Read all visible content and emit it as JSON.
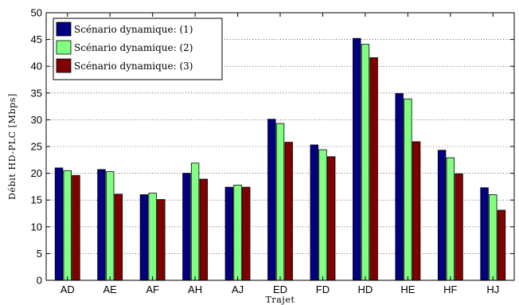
{
  "chart_data": {
    "type": "bar",
    "xlabel": "Trajet",
    "ylabel": "Débit HD-PLC [Mbps]",
    "ylim": [
      0,
      50
    ],
    "yticks": [
      0,
      5,
      10,
      15,
      20,
      25,
      30,
      35,
      40,
      45,
      50
    ],
    "grid": true,
    "legend_position": "top-left",
    "categories": [
      "AD",
      "AE",
      "AF",
      "AH",
      "AJ",
      "ED",
      "FD",
      "HD",
      "HE",
      "HF",
      "HJ"
    ],
    "series": [
      {
        "name": "Scénario dynamique: (1)",
        "color": "#000080",
        "values": [
          21.0,
          20.7,
          16.0,
          20.0,
          17.4,
          30.1,
          25.3,
          45.2,
          34.9,
          24.3,
          17.3
        ]
      },
      {
        "name": "Scénario dynamique: (2)",
        "color": "#80ff80",
        "values": [
          20.5,
          20.3,
          16.3,
          21.9,
          17.8,
          29.3,
          24.4,
          44.1,
          33.9,
          22.9,
          16.0
        ]
      },
      {
        "name": "Scénario dynamique: (3)",
        "color": "#800000",
        "values": [
          19.6,
          16.1,
          15.1,
          18.9,
          17.4,
          25.8,
          23.1,
          41.6,
          25.9,
          19.9,
          13.1
        ]
      }
    ]
  }
}
